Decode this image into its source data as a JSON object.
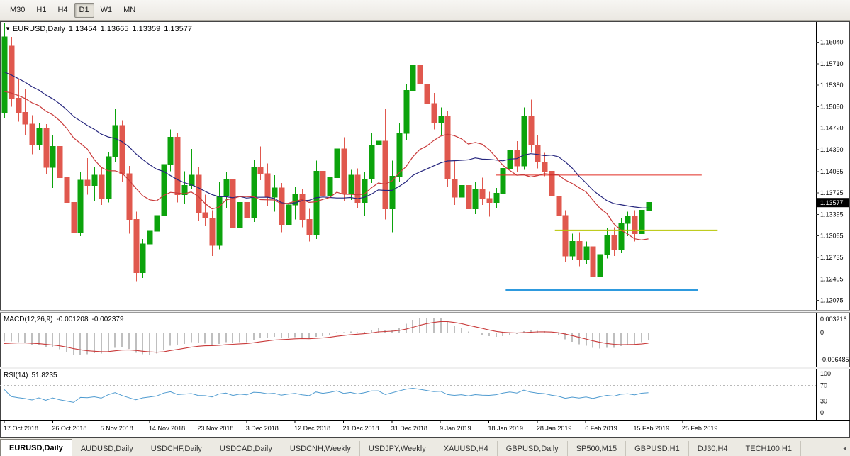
{
  "toolbar": {
    "timeframes": [
      {
        "label": "M30",
        "active": false
      },
      {
        "label": "H1",
        "active": false
      },
      {
        "label": "H4",
        "active": false
      },
      {
        "label": "D1",
        "active": true
      },
      {
        "label": "W1",
        "active": false
      },
      {
        "label": "MN",
        "active": false
      }
    ]
  },
  "chart": {
    "symbol": "EURUSD,Daily",
    "ohlc": {
      "open": "1.13454",
      "high": "1.13665",
      "low": "1.13359",
      "close": "1.13577"
    },
    "current_price": "1.13577"
  },
  "indicators": {
    "macd": {
      "label": "MACD(12,26,9)",
      "value_main": "-0.001208",
      "value_signal": "-0.002379",
      "scale_ticks": [
        {
          "label": "0.003216",
          "value": 0.003216
        },
        {
          "label": "0",
          "value": 0
        },
        {
          "label": "-0.006485",
          "value": -0.006485
        }
      ]
    },
    "rsi": {
      "label": "RSI(14)",
      "value": "51.8235",
      "scale_ticks": [
        100,
        70,
        30,
        0
      ],
      "levels": [
        70,
        30
      ]
    }
  },
  "tabs": [
    {
      "label": "EURUSD,Daily",
      "active": true
    },
    {
      "label": "AUDUSD,Daily",
      "active": false
    },
    {
      "label": "USDCHF,Daily",
      "active": false
    },
    {
      "label": "USDCAD,Daily",
      "active": false
    },
    {
      "label": "USDCNH,Weekly",
      "active": false
    },
    {
      "label": "USDJPY,Weekly",
      "active": false
    },
    {
      "label": "XAUUSD,H4",
      "active": false
    },
    {
      "label": "GBPUSD,Daily",
      "active": false
    },
    {
      "label": "SP500,M15",
      "active": false
    },
    {
      "label": "GBPUSD,H1",
      "active": false
    },
    {
      "label": "DJ30,H4",
      "active": false
    },
    {
      "label": "TECH100,H1",
      "active": false
    }
  ],
  "colors": {
    "bull": "#0ca30c",
    "bear": "#e0584e",
    "ma_fast": "#c93a3a",
    "ma_slow": "#26267e",
    "macd_hist": "#bfbfbf",
    "macd_signal": "#c93a3a",
    "rsi": "#4f9bd0",
    "level_red": "#e02a20",
    "level_yellow": "#b6c400",
    "level_blue": "#2e9ade",
    "badge_bg": "#000000",
    "badge_text": "#ffffff"
  },
  "chart_data": {
    "type": "candlestick",
    "title": "EURUSD,Daily",
    "symbol": "EURUSD",
    "timeframe": "Daily",
    "y_range_main": [
      1.1193,
      1.1635
    ],
    "y_axis_ticks": [
      1.1604,
      1.1571,
      1.1538,
      1.1505,
      1.1472,
      1.1439,
      1.14055,
      1.13725,
      1.13395,
      1.13065,
      1.12735,
      1.12405,
      1.12075
    ],
    "x_axis_labels": [
      "17 Oct 2018",
      "26 Oct 2018",
      "5 Nov 2018",
      "14 Nov 2018",
      "23 Nov 2018",
      "3 Dec 2018",
      "12 Dec 2018",
      "21 Dec 2018",
      "31 Dec 2018",
      "9 Jan 2019",
      "18 Jan 2019",
      "28 Jan 2019",
      "6 Feb 2019",
      "15 Feb 2019",
      "25 Feb 2019"
    ],
    "ohlc": [
      [
        1.1495,
        1.1633,
        1.1488,
        1.1612
      ],
      [
        1.1598,
        1.1612,
        1.1505,
        1.1518
      ],
      [
        1.1518,
        1.1548,
        1.1482,
        1.1496
      ],
      [
        1.1496,
        1.1532,
        1.1462,
        1.1478
      ],
      [
        1.1478,
        1.1492,
        1.1432,
        1.1446
      ],
      [
        1.1446,
        1.148,
        1.1438,
        1.1472
      ],
      [
        1.1472,
        1.1478,
        1.1402,
        1.1412
      ],
      [
        1.1412,
        1.1462,
        1.138,
        1.1444
      ],
      [
        1.1444,
        1.145,
        1.1386,
        1.1396
      ],
      [
        1.1396,
        1.1422,
        1.1348,
        1.1358
      ],
      [
        1.1358,
        1.139,
        1.1302,
        1.1312
      ],
      [
        1.1312,
        1.1404,
        1.1306,
        1.1392
      ],
      [
        1.1392,
        1.1426,
        1.137,
        1.1384
      ],
      [
        1.1384,
        1.1412,
        1.136,
        1.14
      ],
      [
        1.14,
        1.1412,
        1.1354,
        1.1364
      ],
      [
        1.1364,
        1.1436,
        1.1358,
        1.1428
      ],
      [
        1.1428,
        1.1502,
        1.142,
        1.1476
      ],
      [
        1.1476,
        1.1484,
        1.139,
        1.1402
      ],
      [
        1.1402,
        1.1414,
        1.131,
        1.1332
      ],
      [
        1.1332,
        1.1344,
        1.1237,
        1.125
      ],
      [
        1.125,
        1.1302,
        1.1242,
        1.1294
      ],
      [
        1.1294,
        1.1354,
        1.1262,
        1.1314
      ],
      [
        1.1314,
        1.1376,
        1.1296,
        1.1338
      ],
      [
        1.1338,
        1.1428,
        1.133,
        1.1416
      ],
      [
        1.1416,
        1.147,
        1.1406,
        1.1458
      ],
      [
        1.1458,
        1.1464,
        1.1358,
        1.137
      ],
      [
        1.137,
        1.1406,
        1.1356,
        1.1384
      ],
      [
        1.1384,
        1.144,
        1.1378,
        1.14
      ],
      [
        1.14,
        1.1412,
        1.133,
        1.1342
      ],
      [
        1.1342,
        1.137,
        1.1322,
        1.1334
      ],
      [
        1.1334,
        1.1346,
        1.1276,
        1.1292
      ],
      [
        1.1292,
        1.139,
        1.1286,
        1.1368
      ],
      [
        1.1368,
        1.1404,
        1.135,
        1.1394
      ],
      [
        1.1394,
        1.1402,
        1.1306,
        1.132
      ],
      [
        1.132,
        1.1384,
        1.1314,
        1.1358
      ],
      [
        1.1358,
        1.139,
        1.1318,
        1.1334
      ],
      [
        1.1334,
        1.1424,
        1.1328,
        1.1412
      ],
      [
        1.1412,
        1.1444,
        1.1392,
        1.1402
      ],
      [
        1.1402,
        1.1418,
        1.1352,
        1.1366
      ],
      [
        1.1366,
        1.14,
        1.1344,
        1.138
      ],
      [
        1.138,
        1.1388,
        1.1312,
        1.1324
      ],
      [
        1.1324,
        1.1366,
        1.1282,
        1.1354
      ],
      [
        1.1354,
        1.1382,
        1.1332,
        1.137
      ],
      [
        1.137,
        1.1378,
        1.132,
        1.1332
      ],
      [
        1.1332,
        1.1348,
        1.1298,
        1.1308
      ],
      [
        1.1308,
        1.1422,
        1.1302,
        1.1406
      ],
      [
        1.1406,
        1.1416,
        1.1356,
        1.1368
      ],
      [
        1.1368,
        1.1404,
        1.1346,
        1.1396
      ],
      [
        1.1396,
        1.145,
        1.1388,
        1.144
      ],
      [
        1.144,
        1.1458,
        1.136,
        1.1372
      ],
      [
        1.1372,
        1.1408,
        1.1362,
        1.14
      ],
      [
        1.14,
        1.141,
        1.135,
        1.1358
      ],
      [
        1.1358,
        1.1404,
        1.1338,
        1.1394
      ],
      [
        1.1394,
        1.1464,
        1.1388,
        1.1446
      ],
      [
        1.1446,
        1.1474,
        1.1416,
        1.1452
      ],
      [
        1.1452,
        1.1502,
        1.1332,
        1.1348
      ],
      [
        1.1348,
        1.1422,
        1.1312,
        1.1398
      ],
      [
        1.1398,
        1.148,
        1.139,
        1.1464
      ],
      [
        1.1464,
        1.154,
        1.1454,
        1.153
      ],
      [
        1.153,
        1.1582,
        1.151,
        1.1568
      ],
      [
        1.1568,
        1.158,
        1.1522,
        1.154
      ],
      [
        1.154,
        1.1554,
        1.1498,
        1.151
      ],
      [
        1.151,
        1.1526,
        1.147,
        1.148
      ],
      [
        1.148,
        1.1504,
        1.1462,
        1.149
      ],
      [
        1.149,
        1.1498,
        1.1382,
        1.1394
      ],
      [
        1.1394,
        1.1422,
        1.1354,
        1.1366
      ],
      [
        1.1366,
        1.1398,
        1.135,
        1.1384
      ],
      [
        1.1384,
        1.1392,
        1.1338,
        1.1348
      ],
      [
        1.1348,
        1.139,
        1.134,
        1.1378
      ],
      [
        1.1378,
        1.1396,
        1.1354,
        1.1364
      ],
      [
        1.1364,
        1.1374,
        1.1336,
        1.1358
      ],
      [
        1.1358,
        1.138,
        1.135,
        1.1372
      ],
      [
        1.1372,
        1.142,
        1.1364,
        1.141
      ],
      [
        1.141,
        1.1446,
        1.14,
        1.1438
      ],
      [
        1.1438,
        1.1452,
        1.1404,
        1.1414
      ],
      [
        1.1414,
        1.1504,
        1.1408,
        1.149
      ],
      [
        1.149,
        1.1516,
        1.1434,
        1.1446
      ],
      [
        1.1446,
        1.1462,
        1.141,
        1.142
      ],
      [
        1.142,
        1.1434,
        1.1398,
        1.1406
      ],
      [
        1.1406,
        1.1412,
        1.136,
        1.1368
      ],
      [
        1.1368,
        1.1382,
        1.1326,
        1.1338
      ],
      [
        1.1338,
        1.1346,
        1.1266,
        1.1276
      ],
      [
        1.1276,
        1.131,
        1.127,
        1.1298
      ],
      [
        1.1298,
        1.1312,
        1.126,
        1.127
      ],
      [
        1.127,
        1.1298,
        1.1264,
        1.129
      ],
      [
        1.129,
        1.1296,
        1.1226,
        1.1244
      ],
      [
        1.1244,
        1.1284,
        1.1236,
        1.1278
      ],
      [
        1.1278,
        1.1318,
        1.1272,
        1.1308
      ],
      [
        1.1308,
        1.132,
        1.1276,
        1.1286
      ],
      [
        1.1286,
        1.1334,
        1.128,
        1.1326
      ],
      [
        1.1326,
        1.1344,
        1.1306,
        1.1336
      ],
      [
        1.1336,
        1.1346,
        1.1298,
        1.131
      ],
      [
        1.131,
        1.1352,
        1.1304,
        1.1346
      ],
      [
        1.13454,
        1.13665,
        1.13359,
        1.13577
      ]
    ],
    "overlays": {
      "moving_averages": [
        {
          "type": "SMA",
          "period": 13,
          "color": "red"
        },
        {
          "type": "SMA",
          "period": 24,
          "color": "navy"
        }
      ],
      "horizontal_lines": [
        {
          "name": "resistance-red",
          "price": 1.14,
          "from_bar": 71,
          "to_bar": 100.7,
          "color": "red",
          "width": 1
        },
        {
          "name": "level-yellow",
          "price": 1.1315,
          "from_bar": 79.5,
          "to_bar": 103,
          "color": "yellow-green",
          "width": 2
        },
        {
          "name": "support-blue",
          "price": 1.1224,
          "from_bar": 72.4,
          "to_bar": 100.2,
          "color": "blue",
          "width": 3
        }
      ]
    },
    "indicator_panels": [
      {
        "name": "MACD",
        "params": [
          12,
          26,
          9
        ],
        "last_values": [
          -0.001208,
          -0.002379
        ],
        "scale": [
          0.003216,
          0,
          -0.006485
        ]
      },
      {
        "name": "RSI",
        "params": [
          14
        ],
        "last_value": 51.8235,
        "scale": [
          100,
          70,
          30,
          0
        ],
        "levels": [
          70,
          30
        ]
      }
    ]
  }
}
